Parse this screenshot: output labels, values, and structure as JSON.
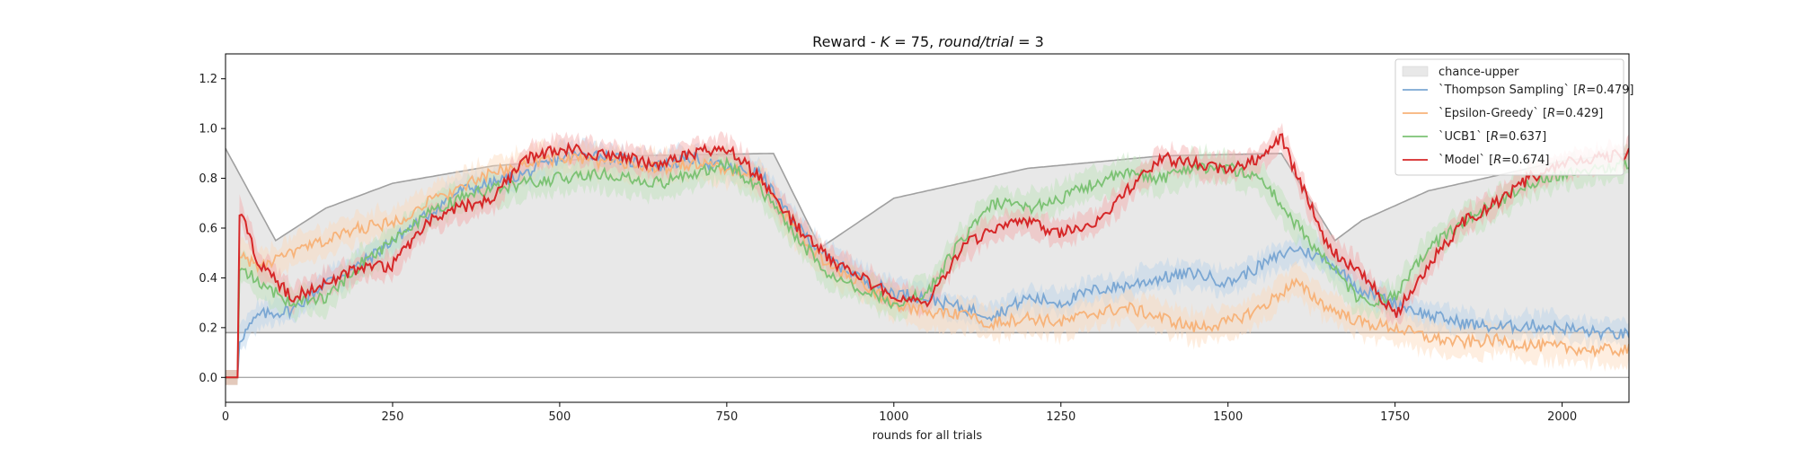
{
  "chart_data": {
    "type": "line",
    "title": "Reward - K = 75, round/trial = 3",
    "title_parts": {
      "prefix": "Reward - ",
      "k_symbol": "K",
      "k_rest": " = 75, ",
      "rt_symbol": "round/trial",
      "rt_rest": " = 3"
    },
    "xlabel": "rounds for all trials",
    "ylabel": "",
    "xlim": [
      0,
      2100
    ],
    "ylim": [
      -0.1,
      1.3
    ],
    "x_ticks": [
      0,
      250,
      500,
      750,
      1000,
      1250,
      1500,
      1750,
      2000
    ],
    "y_ticks": [
      "0.0",
      "0.2",
      "0.4",
      "0.6",
      "0.8",
      "1.0",
      "1.2"
    ],
    "grid": false,
    "legend_position": "top-right",
    "chance_upper": {
      "name": "chance-upper",
      "color": "#e8e8e8",
      "upper_x": [
        0,
        75,
        150,
        250,
        400,
        600,
        820,
        890,
        1000,
        1200,
        1400,
        1580,
        1660,
        1700,
        1800,
        2000,
        2100
      ],
      "upper_y": [
        0.92,
        0.55,
        0.68,
        0.78,
        0.85,
        0.89,
        0.9,
        0.52,
        0.72,
        0.84,
        0.89,
        0.9,
        0.55,
        0.63,
        0.75,
        0.87,
        0.9
      ],
      "lower_y": 0.18,
      "baseline_y": 0.0
    },
    "series": [
      {
        "name": "`Thompson Sampling` [R=0.479]",
        "legend_prefix": "`Thompson Sampling` [",
        "legend_symbol": "R",
        "legend_suffix": "=0.479]",
        "color": "#7ba7d3",
        "band_color": "#b9d2ea",
        "x": [
          0,
          18,
          20,
          50,
          100,
          150,
          200,
          250,
          300,
          350,
          400,
          450,
          500,
          550,
          600,
          650,
          700,
          750,
          800,
          850,
          900,
          950,
          1000,
          1050,
          1100,
          1150,
          1200,
          1250,
          1300,
          1350,
          1400,
          1450,
          1500,
          1550,
          1600,
          1650,
          1700,
          1750,
          1800,
          1850,
          1900,
          1950,
          2000,
          2050,
          2100
        ],
        "y": [
          0.0,
          0.0,
          0.15,
          0.25,
          0.27,
          0.38,
          0.45,
          0.55,
          0.65,
          0.75,
          0.78,
          0.82,
          0.88,
          0.9,
          0.87,
          0.85,
          0.88,
          0.84,
          0.82,
          0.62,
          0.48,
          0.4,
          0.34,
          0.32,
          0.28,
          0.25,
          0.32,
          0.3,
          0.35,
          0.37,
          0.4,
          0.42,
          0.38,
          0.45,
          0.52,
          0.47,
          0.35,
          0.3,
          0.25,
          0.22,
          0.2,
          0.21,
          0.2,
          0.18,
          0.17
        ],
        "band": 0.05
      },
      {
        "name": "`Epsilon-Greedy` [R=0.429]",
        "legend_prefix": "`Epsilon-Greedy` [",
        "legend_symbol": "R",
        "legend_suffix": "=0.429]",
        "color": "#f7b37a",
        "band_color": "#fcd9bb",
        "x": [
          0,
          18,
          20,
          50,
          100,
          150,
          200,
          250,
          300,
          350,
          400,
          450,
          500,
          550,
          600,
          650,
          700,
          750,
          800,
          850,
          900,
          950,
          1000,
          1050,
          1100,
          1150,
          1200,
          1250,
          1300,
          1350,
          1400,
          1450,
          1500,
          1550,
          1600,
          1650,
          1700,
          1750,
          1800,
          1850,
          1900,
          1950,
          2000,
          2050,
          2100
        ],
        "y": [
          0.0,
          0.0,
          0.5,
          0.44,
          0.5,
          0.55,
          0.6,
          0.62,
          0.7,
          0.76,
          0.82,
          0.86,
          0.88,
          0.87,
          0.86,
          0.84,
          0.86,
          0.84,
          0.8,
          0.6,
          0.45,
          0.38,
          0.3,
          0.26,
          0.25,
          0.22,
          0.24,
          0.22,
          0.26,
          0.28,
          0.24,
          0.2,
          0.22,
          0.28,
          0.38,
          0.28,
          0.22,
          0.2,
          0.16,
          0.14,
          0.15,
          0.13,
          0.12,
          0.11,
          0.11
        ],
        "band": 0.06
      },
      {
        "name": "`UCB1` [R=0.637]",
        "legend_prefix": "`UCB1` [",
        "legend_symbol": "R",
        "legend_suffix": "=0.637]",
        "color": "#7cc274",
        "band_color": "#bde2b8",
        "x": [
          0,
          18,
          20,
          50,
          100,
          150,
          200,
          250,
          300,
          350,
          400,
          450,
          500,
          550,
          600,
          650,
          700,
          750,
          800,
          850,
          900,
          950,
          1000,
          1050,
          1100,
          1150,
          1200,
          1250,
          1300,
          1350,
          1400,
          1450,
          1500,
          1550,
          1600,
          1650,
          1700,
          1750,
          1800,
          1850,
          1900,
          1950,
          2000,
          2050,
          2100
        ],
        "y": [
          0.0,
          0.0,
          0.45,
          0.38,
          0.3,
          0.32,
          0.45,
          0.55,
          0.65,
          0.72,
          0.76,
          0.78,
          0.8,
          0.82,
          0.8,
          0.78,
          0.82,
          0.86,
          0.76,
          0.58,
          0.42,
          0.36,
          0.3,
          0.34,
          0.55,
          0.7,
          0.68,
          0.72,
          0.78,
          0.82,
          0.8,
          0.85,
          0.84,
          0.8,
          0.62,
          0.46,
          0.3,
          0.32,
          0.52,
          0.62,
          0.7,
          0.78,
          0.82,
          0.84,
          0.86
        ],
        "band": 0.06
      },
      {
        "name": "`Model` [R=0.674]",
        "legend_prefix": "`Model` [",
        "legend_symbol": "R",
        "legend_suffix": "=0.674]",
        "color": "#d62728",
        "band_color": "#f3a8a9",
        "x": [
          0,
          18,
          20,
          50,
          100,
          150,
          200,
          250,
          300,
          350,
          400,
          450,
          500,
          550,
          600,
          650,
          700,
          750,
          800,
          850,
          900,
          950,
          1000,
          1050,
          1100,
          1150,
          1200,
          1250,
          1300,
          1350,
          1400,
          1450,
          1500,
          1550,
          1580,
          1650,
          1700,
          1750,
          1800,
          1850,
          1900,
          1950,
          2000,
          2050,
          2100
        ],
        "y": [
          0.0,
          0.0,
          0.68,
          0.46,
          0.32,
          0.38,
          0.44,
          0.45,
          0.62,
          0.68,
          0.72,
          0.88,
          0.92,
          0.9,
          0.88,
          0.85,
          0.9,
          0.92,
          0.8,
          0.62,
          0.48,
          0.4,
          0.33,
          0.3,
          0.52,
          0.6,
          0.62,
          0.58,
          0.62,
          0.75,
          0.88,
          0.86,
          0.84,
          0.88,
          0.96,
          0.52,
          0.42,
          0.25,
          0.45,
          0.62,
          0.7,
          0.8,
          0.86,
          0.88,
          0.9
        ],
        "band": 0.05
      }
    ]
  }
}
